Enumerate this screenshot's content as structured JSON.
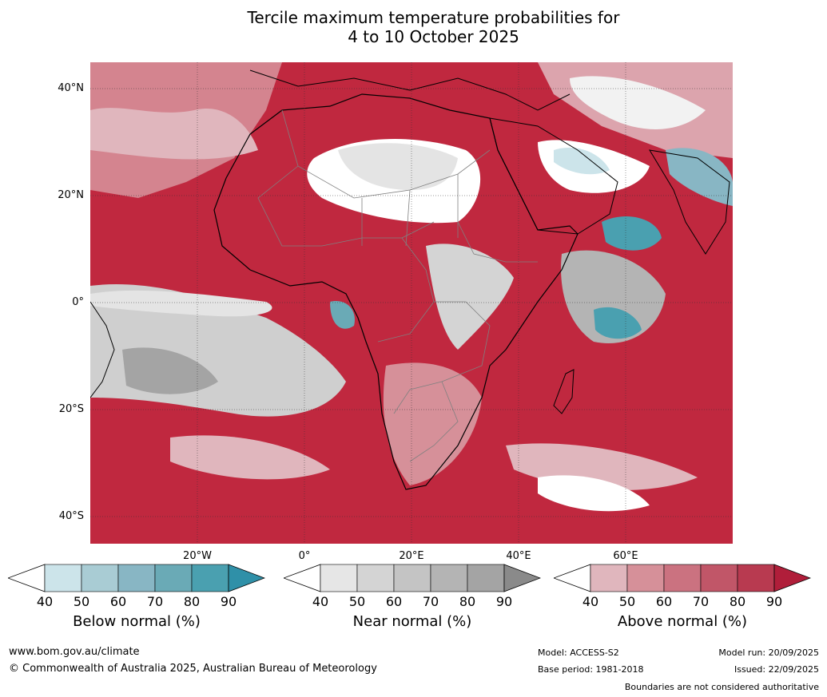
{
  "title_line1": "Tercile maximum temperature probabilities for",
  "title_line2": "4 to 10 October 2025",
  "lat_labels": [
    "40°N",
    "20°N",
    "0°",
    "20°S",
    "40°S"
  ],
  "lon_labels": [
    "20°W",
    "0°",
    "20°E",
    "40°E",
    "60°E"
  ],
  "colorbars": [
    {
      "label": "Below normal (%)",
      "ticks": [
        "40",
        "50",
        "60",
        "70",
        "80",
        "90"
      ],
      "colors": [
        "#cce4ea",
        "#a9ccd4",
        "#88b6c4",
        "#6aaab6",
        "#4aa0b0",
        "#2f90a8"
      ]
    },
    {
      "label": "Near normal (%)",
      "ticks": [
        "40",
        "50",
        "60",
        "70",
        "80",
        "90"
      ],
      "colors": [
        "#e6e6e6",
        "#d4d4d4",
        "#c4c4c4",
        "#b4b4b4",
        "#a4a4a4",
        "#8a8a8a"
      ]
    },
    {
      "label": "Above normal (%)",
      "ticks": [
        "40",
        "50",
        "60",
        "70",
        "80",
        "90"
      ],
      "colors": [
        "#e0b6bd",
        "#d69099",
        "#cb7280",
        "#c15668",
        "#b83a50",
        "#b01e3a"
      ]
    }
  ],
  "footer": {
    "website": "www.bom.gov.au/climate",
    "copyright": "© Commonwealth of Australia 2025, Australian Bureau of Meteorology",
    "model": "Model: ACCESS-S2",
    "base_period": "Base period: 1981-2018",
    "model_run": "Model run: 20/09/2025",
    "issued": "Issued: 22/09/2025",
    "disclaimer": "Boundaries are not considered authoritative"
  }
}
